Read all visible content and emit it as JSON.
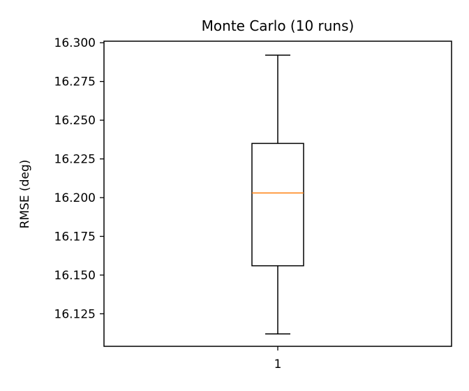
{
  "chart_data": {
    "type": "box",
    "title": "Monte Carlo (10 runs)",
    "xlabel": "",
    "ylabel": "RMSE (deg)",
    "categories": [
      "1"
    ],
    "ylim": [
      16.104,
      16.301
    ],
    "yticks": [
      "16.125",
      "16.150",
      "16.175",
      "16.200",
      "16.225",
      "16.250",
      "16.275",
      "16.300"
    ],
    "boxes": [
      {
        "label": "1",
        "whisker_low": 16.112,
        "q1": 16.156,
        "median": 16.203,
        "q3": 16.235,
        "whisker_high": 16.292
      }
    ],
    "grid": false,
    "colors": {
      "box": "#000000",
      "median": "#ff7f0e"
    }
  }
}
